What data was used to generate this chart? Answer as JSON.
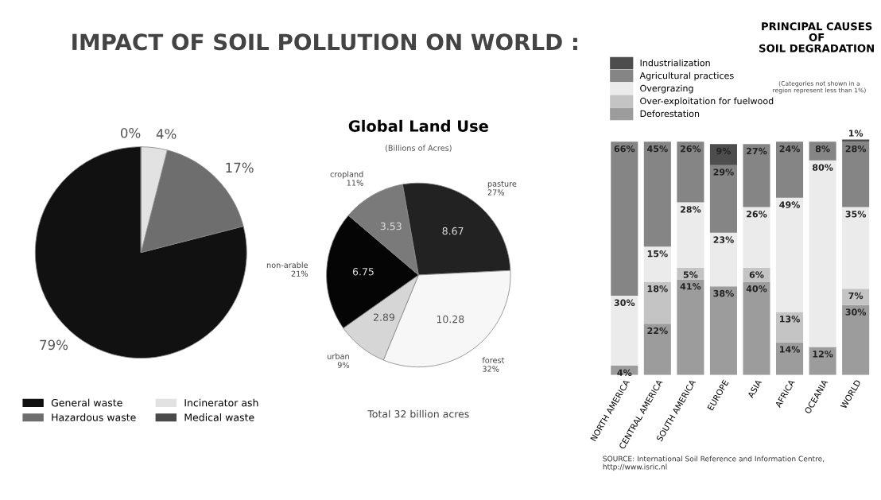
{
  "chart_data": [
    {
      "type": "pie",
      "title": "IMPACT OF SOIL POLLUTION ON WORLD :",
      "categories": [
        "General waste",
        "Hazardous waste",
        "Incinerator ash",
        "Medical waste"
      ],
      "values": [
        79,
        17,
        4,
        0
      ],
      "value_labels": [
        "79%",
        "17%",
        "4%",
        "0%"
      ],
      "colors": [
        "#111111",
        "#6e6e6e",
        "#e2e2e2",
        "#4a4a4a"
      ],
      "legend": "bottom"
    },
    {
      "type": "pie",
      "title": "Global Land Use",
      "subtitle": "(Billions of Acres)",
      "categories": [
        "pasture",
        "forest",
        "urban",
        "non-arable",
        "cropland"
      ],
      "values": [
        27,
        32,
        9,
        21,
        11
      ],
      "value_labels": [
        "27%",
        "32%",
        "9%",
        "21%",
        "11%"
      ],
      "colors": [
        "#222222",
        "#f7f7f7",
        "#d6d6d6",
        "#050505",
        "#7a7a7a"
      ],
      "annotations": [
        {
          "text": "8.67",
          "x": "pasture"
        },
        {
          "text": "10.28",
          "x": "forest"
        },
        {
          "text": "2.89",
          "x": "urban"
        },
        {
          "text": "6.75",
          "x": "non-arable"
        },
        {
          "text": "3.53",
          "x": "cropland"
        },
        "Total 32 billion acres"
      ]
    },
    {
      "type": "bar",
      "stacked": true,
      "title": "PRINCIPAL CAUSES\nOF\nSOIL DEGRADATION",
      "categories": [
        "NORTH AMERICA",
        "CENTRAL AMERICA",
        "SOUTH AMERICA",
        "EUROPE",
        "ASIA",
        "AFRICA",
        "OCEANIA",
        "WORLD"
      ],
      "legend": "top left",
      "series": [
        {
          "name": "Deforestation",
          "color": "#9c9c9c",
          "values": [
            4,
            22,
            41,
            38,
            40,
            14,
            12,
            30
          ],
          "value_labels": [
            "4%",
            "22%",
            "41%",
            "38%",
            "40%",
            "14%",
            "12%",
            "30%"
          ]
        },
        {
          "name": "Over-exploitation for fuelwood",
          "color": "#c4c4c4",
          "values": [
            null,
            18,
            5,
            null,
            6,
            13,
            null,
            7
          ],
          "value_labels": [
            null,
            "18%",
            "5%",
            null,
            "6%",
            "13%",
            null,
            "7%"
          ]
        },
        {
          "name": "Overgrazing",
          "color": "#ebebeb",
          "values": [
            30,
            15,
            28,
            23,
            26,
            49,
            80,
            35
          ],
          "value_labels": [
            "30%",
            "15%",
            "28%",
            "23%",
            "26%",
            "49%",
            "80%",
            "35%"
          ]
        },
        {
          "name": "Agricultural practices",
          "color": "#858585",
          "values": [
            66,
            45,
            26,
            29,
            27,
            24,
            8,
            28
          ],
          "value_labels": [
            "66%",
            "45%",
            "26%",
            "29%",
            "27%",
            "24%",
            "8%",
            "28%"
          ]
        },
        {
          "name": "Industrialization",
          "color": "#4d4d4d",
          "values": [
            null,
            null,
            null,
            9,
            null,
            null,
            null,
            1
          ],
          "value_labels": [
            null,
            null,
            null,
            "9%",
            null,
            null,
            null,
            "1%"
          ]
        }
      ],
      "annotations": [
        "(Categories not shown in a\nregion represent less than 1%)",
        "SOURCE: International Soil Reference and Information Centre, http://www.isric.nl"
      ]
    }
  ]
}
